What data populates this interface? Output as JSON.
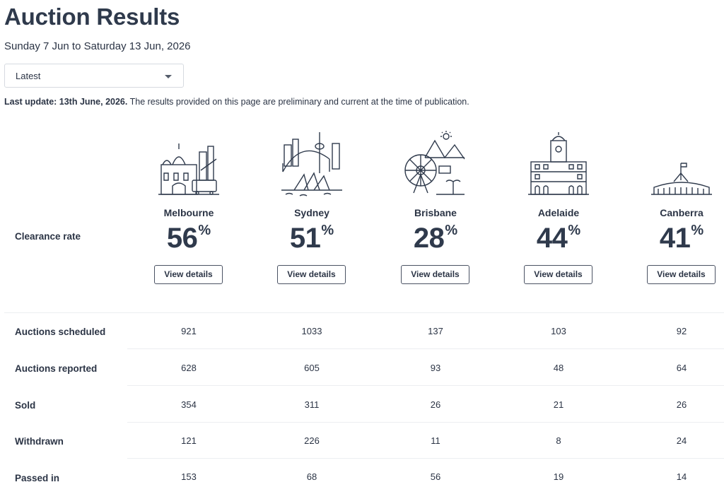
{
  "page": {
    "title": "Auction Results",
    "date_range": "Sunday 7 Jun to Saturday 13 Jun, 2026",
    "filter": {
      "selected": "Latest"
    },
    "update_label": "Last update: 13th June, 2026.",
    "update_text": " The results provided on this page are preliminary and current at the time of publication."
  },
  "table": {
    "clearance_label": "Clearance rate",
    "rate_suffix": "%",
    "view_details_label": "View details",
    "row_labels": {
      "scheduled": "Auctions scheduled",
      "reported": "Auctions reported",
      "sold": "Sold",
      "withdrawn": "Withdrawn",
      "passed_in": "Passed in"
    },
    "cities": [
      {
        "name": "Melbourne",
        "icon": "melbourne-skyline-icon",
        "clearance_rate": "56",
        "scheduled": "921",
        "reported": "628",
        "sold": "354",
        "withdrawn": "121",
        "passed_in": "153"
      },
      {
        "name": "Sydney",
        "icon": "sydney-skyline-icon",
        "clearance_rate": "51",
        "scheduled": "1033",
        "reported": "605",
        "sold": "311",
        "withdrawn": "226",
        "passed_in": "68"
      },
      {
        "name": "Brisbane",
        "icon": "brisbane-skyline-icon",
        "clearance_rate": "28",
        "scheduled": "137",
        "reported": "93",
        "sold": "26",
        "withdrawn": "11",
        "passed_in": "56"
      },
      {
        "name": "Adelaide",
        "icon": "adelaide-skyline-icon",
        "clearance_rate": "44",
        "scheduled": "103",
        "reported": "48",
        "sold": "21",
        "withdrawn": "8",
        "passed_in": "19"
      },
      {
        "name": "Canberra",
        "icon": "canberra-skyline-icon",
        "clearance_rate": "41",
        "scheduled": "92",
        "reported": "64",
        "sold": "26",
        "withdrawn": "24",
        "passed_in": "14"
      }
    ]
  },
  "colors": {
    "text": "#2b3445",
    "heading": "#2f3a4c",
    "divider": "#eceef1",
    "button_border": "#4a5263"
  }
}
